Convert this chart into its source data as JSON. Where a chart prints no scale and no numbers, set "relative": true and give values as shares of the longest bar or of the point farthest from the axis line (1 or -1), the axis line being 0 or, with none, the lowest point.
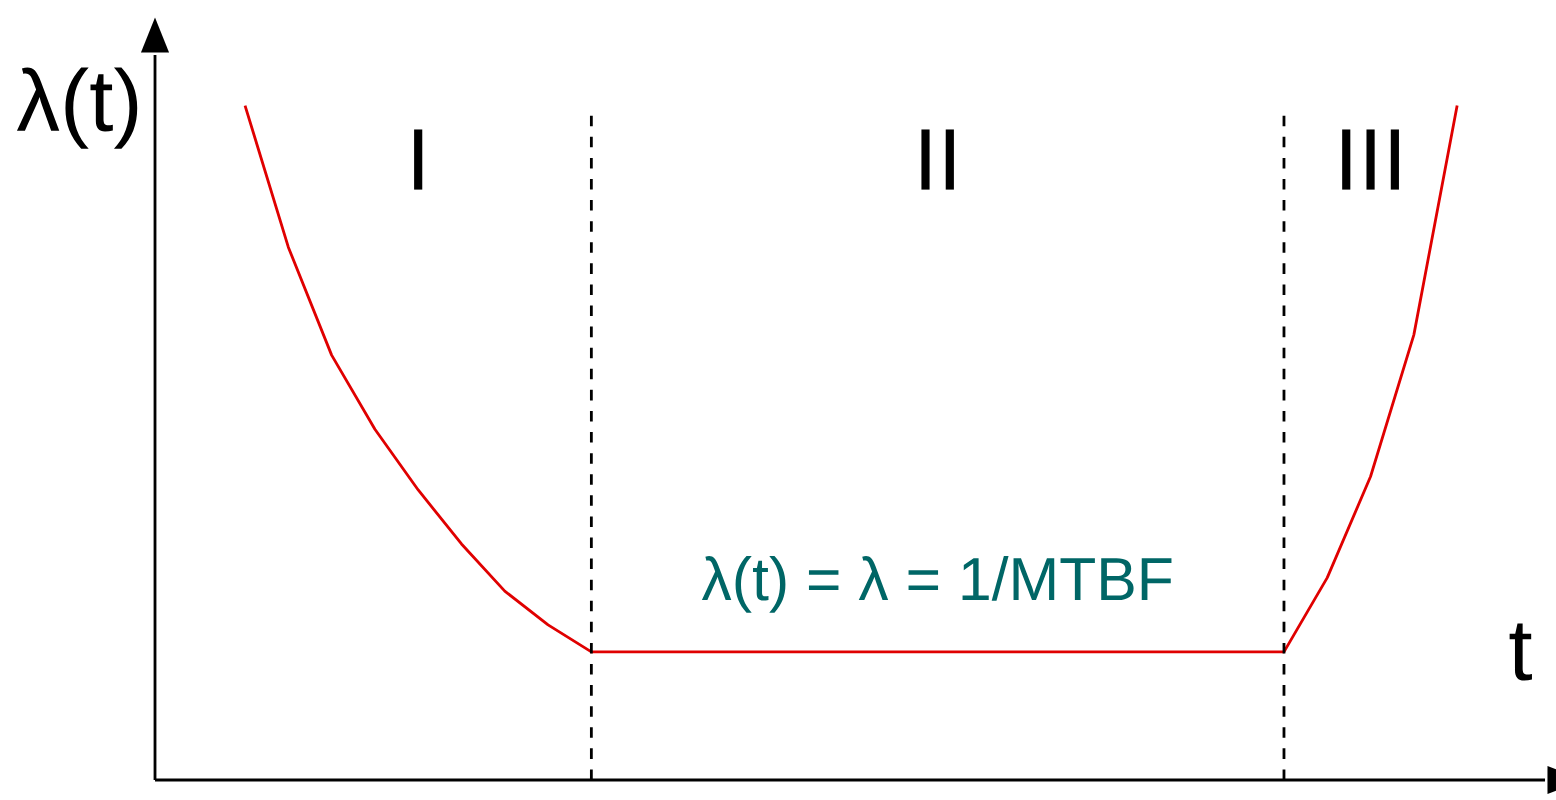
{
  "chart_data": {
    "type": "line",
    "relative": true,
    "xlabel": "t",
    "ylabel": "λ(t)",
    "categories": [
      null,
      null,
      null,
      null,
      null,
      null,
      null,
      null,
      null,
      null,
      null,
      null,
      null,
      null,
      null,
      null,
      null,
      null,
      null,
      null,
      null,
      null,
      null,
      null,
      null,
      null,
      null,
      null,
      null
    ],
    "series": [
      {
        "color": "#e00000",
        "values": [
          1,
          0.79,
          0.63,
          0.52,
          0.43,
          0.35,
          0.28,
          0.23,
          0.19,
          0.19,
          0.19,
          0.19,
          0.19,
          0.19,
          0.19,
          0.19,
          0.19,
          0.19,
          0.19,
          0.19,
          0.19,
          0.19,
          0.19,
          0.19,
          0.19,
          0.3,
          0.45,
          0.66,
          1
        ]
      }
    ],
    "annotations": [
      "I",
      "II",
      "III",
      "λ(t) = λ = 1/MTBF"
    ],
    "marker": "none",
    "line_style": "solid"
  }
}
